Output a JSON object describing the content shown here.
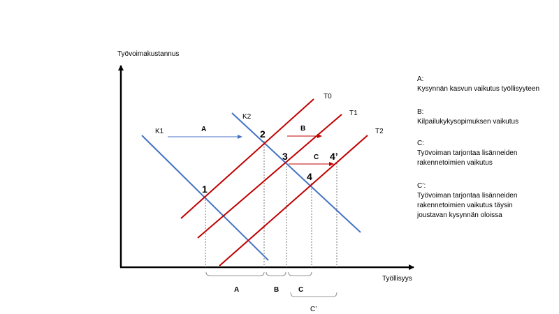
{
  "axes": {
    "y_label": "Työvoimakustannus",
    "x_label": "Työllisyys"
  },
  "curves": {
    "k1": "K1",
    "k2": "K2",
    "t0": "T0",
    "t1": "T1",
    "t2": "T2"
  },
  "points": {
    "p1": "1",
    "p2": "2",
    "p3": "3",
    "p4": "4",
    "p4prime": "4’"
  },
  "arrows": {
    "a": "A",
    "b": "B",
    "c": "C"
  },
  "braces": {
    "a": "A",
    "b": "B",
    "c": "C",
    "cprime": "C’"
  },
  "legend": [
    {
      "key": "A:",
      "desc": [
        "Kysynnän kasvun vaikutus työllisyyteen"
      ]
    },
    {
      "key": "B:",
      "desc": [
        "Kilpailukykysopimuksen  vaikutus"
      ]
    },
    {
      "key": "C:",
      "desc": [
        "Työvoiman tarjontaa lisänneiden",
        "rakennetoimien  vaikutus"
      ]
    },
    {
      "key": "C’:",
      "desc": [
        "Työvoiman tarjontaa lisänneiden",
        "rakennetoimien  vaikutus täysin",
        "joustavan kysynnän oloissa"
      ]
    }
  ],
  "colors": {
    "demand": "#4472C4",
    "supply": "#C00000",
    "axis": "#000000"
  }
}
